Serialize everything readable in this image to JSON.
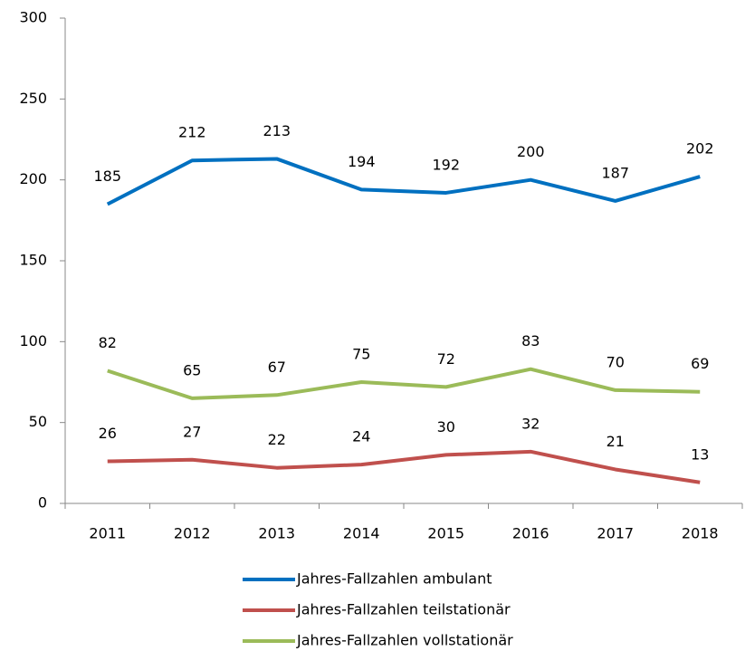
{
  "chart_data": {
    "type": "line",
    "categories": [
      "2011",
      "2012",
      "2013",
      "2014",
      "2015",
      "2016",
      "2017",
      "2018"
    ],
    "series": [
      {
        "name": "Jahres-Fallzahlen ambulant",
        "color": "#0070c0",
        "values": [
          185,
          212,
          213,
          194,
          192,
          200,
          187,
          202
        ]
      },
      {
        "name": "Jahres-Fallzahlen teilstationär",
        "color": "#c0504d",
        "values": [
          26,
          27,
          22,
          24,
          30,
          32,
          21,
          13
        ]
      },
      {
        "name": "Jahres-Fallzahlen vollstationär",
        "color": "#9bbb59",
        "values": [
          82,
          65,
          67,
          75,
          72,
          83,
          70,
          69
        ]
      }
    ],
    "ylim": [
      0,
      300
    ],
    "yticks": [
      0,
      50,
      100,
      150,
      200,
      250,
      300
    ],
    "grid": false,
    "legend": "bottom"
  }
}
